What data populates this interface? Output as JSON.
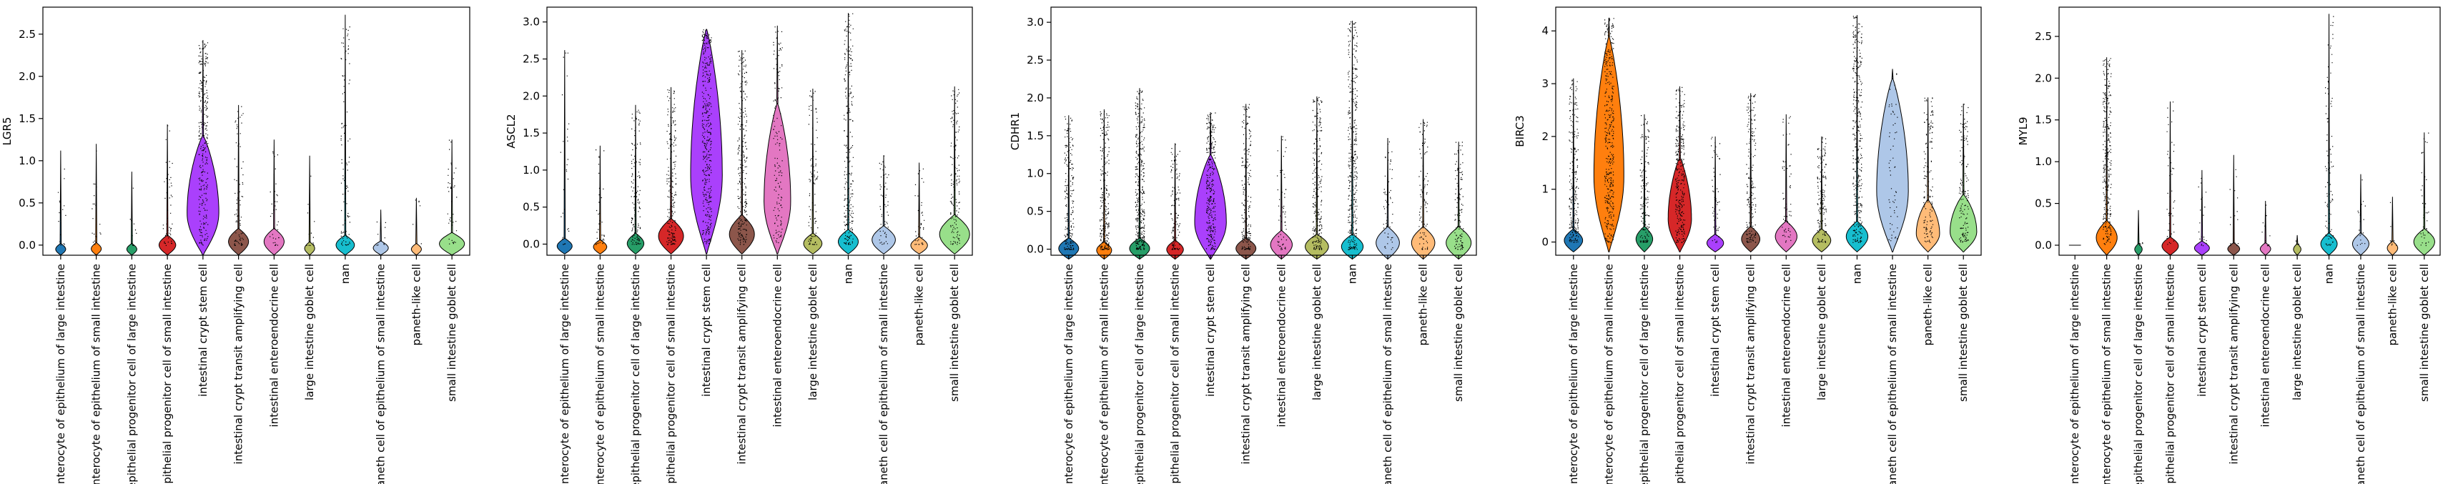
{
  "chart_data": {
    "type": "violin",
    "categories": [
      "enterocyte of epithelium of large intestine",
      "enterocyte of epithelium of small intestine",
      "epithelial progenitor cell of large intestine",
      "epithelial progenitor cell of small intestine",
      "intestinal crypt stem cell",
      "intestinal crypt transit amplifying cell",
      "intestinal enteroendocrine cell",
      "large intestine goblet cell",
      "nan",
      "paneth cell of epithelium of small intestine",
      "paneth-like cell",
      "small intestine goblet cell"
    ],
    "colors": [
      "#1f77b4",
      "#ff7f0e",
      "#279e68",
      "#d62728",
      "#aa40fc",
      "#8c564b",
      "#e377c2",
      "#b5bd61",
      "#17becf",
      "#aec7e8",
      "#ffbb78",
      "#98df8a"
    ],
    "panels": [
      {
        "ylabel": "LGR5",
        "ylim": [
          -0.12,
          2.82
        ],
        "yticks": [
          "0.0",
          "0.5",
          "1.0",
          "1.5",
          "2.0",
          "2.5"
        ],
        "ytick_values": [
          0,
          0.5,
          1,
          1.5,
          2,
          2.5
        ],
        "max_values": [
          1.12,
          1.2,
          0.87,
          1.43,
          2.43,
          1.66,
          1.25,
          1.06,
          2.73,
          0.42,
          0.56,
          1.25
        ],
        "body_height": [
          0.02,
          0.03,
          0.02,
          0.12,
          1.3,
          0.2,
          0.2,
          0.04,
          0.12,
          0.05,
          0.02,
          0.15
        ],
        "body_width": [
          0.3,
          0.3,
          0.3,
          0.5,
          0.95,
          0.6,
          0.6,
          0.3,
          0.55,
          0.45,
          0.3,
          0.75
        ],
        "point_density": [
          15,
          20,
          10,
          50,
          300,
          80,
          40,
          15,
          110,
          10,
          6,
          40
        ],
        "point_mode": [
          0.2,
          0.2,
          0.2,
          0.3,
          0.5,
          0.25,
          0.3,
          0.2,
          0.3,
          0.2,
          0.2,
          0.3
        ]
      },
      {
        "ylabel": "ASCL2",
        "ylim": [
          -0.15,
          3.2
        ],
        "yticks": [
          "0.0",
          "0.5",
          "1.0",
          "1.5",
          "2.0",
          "2.5",
          "3.0"
        ],
        "ytick_values": [
          0,
          0.5,
          1,
          1.5,
          2,
          2.5,
          3
        ],
        "max_values": [
          2.62,
          1.33,
          1.88,
          2.12,
          2.9,
          2.62,
          2.95,
          2.1,
          3.12,
          1.2,
          1.1,
          2.13
        ],
        "body_height": [
          0.08,
          0.06,
          0.15,
          0.35,
          2.9,
          0.4,
          1.9,
          0.15,
          0.2,
          0.25,
          0.1,
          0.4
        ],
        "body_width": [
          0.45,
          0.4,
          0.5,
          0.75,
          0.95,
          0.75,
          0.8,
          0.55,
          0.6,
          0.7,
          0.5,
          0.9
        ],
        "point_density": [
          30,
          40,
          150,
          200,
          400,
          250,
          150,
          100,
          250,
          60,
          40,
          150
        ],
        "point_mode": [
          0.2,
          0.2,
          0.3,
          0.35,
          0.45,
          0.4,
          0.45,
          0.3,
          0.35,
          0.3,
          0.25,
          0.35
        ]
      },
      {
        "ylabel": "CDHR1",
        "ylim": [
          -0.08,
          3.2
        ],
        "yticks": [
          "0.0",
          "0.5",
          "1.0",
          "1.5",
          "2.0",
          "2.5",
          "3.0"
        ],
        "ytick_values": [
          0,
          0.5,
          1,
          1.5,
          2,
          2.5,
          3
        ],
        "max_values": [
          1.77,
          1.85,
          2.13,
          1.4,
          1.81,
          1.92,
          1.5,
          2.02,
          3.02,
          1.47,
          1.72,
          1.42
        ],
        "body_height": [
          0.15,
          0.1,
          0.15,
          0.12,
          1.25,
          0.15,
          0.25,
          0.2,
          0.2,
          0.3,
          0.3,
          0.3
        ],
        "body_width": [
          0.6,
          0.45,
          0.6,
          0.5,
          0.95,
          0.6,
          0.65,
          0.7,
          0.65,
          0.7,
          0.7,
          0.75
        ],
        "point_density": [
          200,
          250,
          350,
          120,
          300,
          200,
          60,
          250,
          350,
          60,
          100,
          120
        ],
        "point_mode": [
          0.3,
          0.3,
          0.35,
          0.3,
          0.4,
          0.3,
          0.35,
          0.35,
          0.4,
          0.35,
          0.35,
          0.35
        ]
      },
      {
        "ylabel": "BIRC3",
        "ylim": [
          -0.25,
          4.45
        ],
        "yticks": [
          "0",
          "1",
          "2",
          "3",
          "4"
        ],
        "ytick_values": [
          0,
          1,
          2,
          3,
          4
        ],
        "max_values": [
          3.1,
          4.25,
          2.42,
          2.95,
          2.0,
          2.82,
          2.42,
          2.0,
          4.3,
          3.28,
          2.74,
          2.62
        ],
        "body_height": [
          0.25,
          3.9,
          0.3,
          1.6,
          0.15,
          0.3,
          0.4,
          0.25,
          0.4,
          3.1,
          0.8,
          0.9
        ],
        "body_width": [
          0.55,
          0.9,
          0.5,
          0.7,
          0.5,
          0.55,
          0.65,
          0.55,
          0.65,
          0.95,
          0.7,
          0.8
        ],
        "point_density": [
          250,
          400,
          150,
          300,
          60,
          180,
          70,
          150,
          350,
          60,
          150,
          150
        ],
        "point_mode": [
          0.35,
          0.45,
          0.35,
          0.4,
          0.3,
          0.35,
          0.35,
          0.35,
          0.4,
          0.5,
          0.4,
          0.4
        ]
      },
      {
        "ylabel": "MYL9",
        "ylim": [
          -0.12,
          2.85
        ],
        "yticks": [
          "0.0",
          "0.5",
          "1.0",
          "1.5",
          "2.0",
          "2.5"
        ],
        "ytick_values": [
          0,
          0.5,
          1,
          1.5,
          2,
          2.5
        ],
        "max_values": [
          0.0,
          2.25,
          0.42,
          1.72,
          0.9,
          1.08,
          0.53,
          0.12,
          2.77,
          0.85,
          0.58,
          1.35
        ],
        "body_height": [
          0.0,
          0.3,
          0.02,
          0.1,
          0.05,
          0.03,
          0.03,
          0.01,
          0.15,
          0.15,
          0.05,
          0.2
        ],
        "body_width": [
          0.0,
          0.7,
          0.25,
          0.55,
          0.5,
          0.4,
          0.35,
          0.25,
          0.55,
          0.55,
          0.35,
          0.7
        ],
        "point_density": [
          0,
          300,
          5,
          50,
          20,
          15,
          10,
          3,
          100,
          20,
          10,
          40
        ],
        "point_mode": [
          0.2,
          0.45,
          0.2,
          0.3,
          0.25,
          0.2,
          0.2,
          0.2,
          0.3,
          0.25,
          0.2,
          0.3
        ]
      }
    ]
  }
}
